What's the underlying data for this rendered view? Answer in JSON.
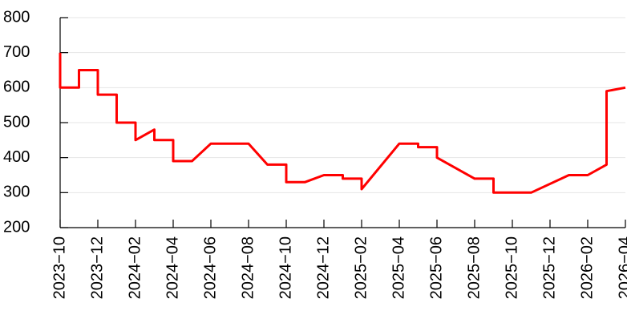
{
  "chart_data": {
    "type": "line",
    "color": "#ff0000",
    "grid": true,
    "x": [
      "2023-10",
      "2023-10",
      "2023-11",
      "2023-11",
      "2023-12",
      "2023-12",
      "2024-01",
      "2024-01",
      "2024-02",
      "2024-02",
      "2024-03",
      "2024-03",
      "2024-04",
      "2024-04",
      "2024-05",
      "2024-06",
      "2024-08",
      "2024-09",
      "2024-10",
      "2024-10",
      "2024-11",
      "2024-12",
      "2025-01",
      "2025-01",
      "2025-02",
      "2025-02",
      "2025-04",
      "2025-05",
      "2025-05",
      "2025-06",
      "2025-06",
      "2025-08",
      "2025-09",
      "2025-09",
      "2025-11",
      "2026-01",
      "2026-02",
      "2026-03",
      "2026-03",
      "2026-03",
      "2026-04"
    ],
    "values": [
      700,
      600,
      600,
      650,
      650,
      580,
      580,
      500,
      500,
      450,
      480,
      450,
      450,
      390,
      390,
      440,
      440,
      380,
      380,
      330,
      330,
      350,
      350,
      340,
      340,
      310,
      440,
      440,
      430,
      430,
      400,
      340,
      340,
      300,
      300,
      350,
      350,
      380,
      500,
      590,
      600
    ],
    "xlim": [
      "2023-10",
      "2026-04"
    ],
    "xticks": [
      {
        "value": "2023-10",
        "label": "2023−10"
      },
      {
        "value": "2023-12",
        "label": "2023−12"
      },
      {
        "value": "2024-02",
        "label": "2024−02"
      },
      {
        "value": "2024-04",
        "label": "2024−04"
      },
      {
        "value": "2024-06",
        "label": "2024−06"
      },
      {
        "value": "2024-08",
        "label": "2024−08"
      },
      {
        "value": "2024-10",
        "label": "2024−10"
      },
      {
        "value": "2024-12",
        "label": "2024−12"
      },
      {
        "value": "2025-02",
        "label": "2025−02"
      },
      {
        "value": "2025-04",
        "label": "2025−04"
      },
      {
        "value": "2025-06",
        "label": "2025−06"
      },
      {
        "value": "2025-08",
        "label": "2025−08"
      },
      {
        "value": "2025-10",
        "label": "2025−10"
      },
      {
        "value": "2025-12",
        "label": "2025−12"
      },
      {
        "value": "2026-02",
        "label": "2026−02"
      },
      {
        "value": "2026-04",
        "label": "2026−04"
      }
    ],
    "ylim": [
      200,
      800
    ],
    "yticks": [
      200,
      300,
      400,
      500,
      600,
      700,
      800
    ]
  }
}
